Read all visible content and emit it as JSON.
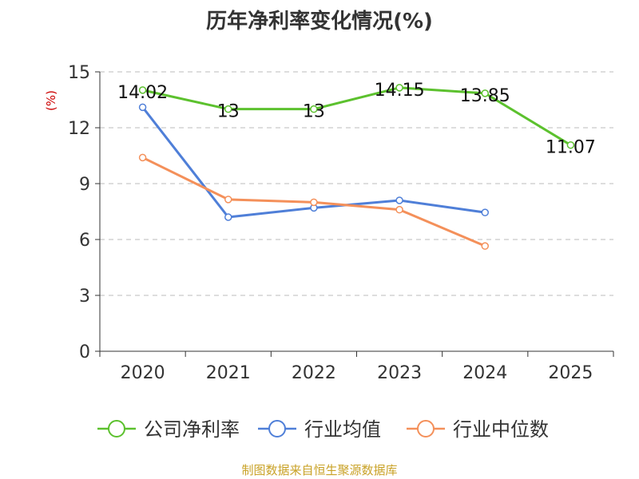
{
  "chart_data": {
    "type": "line",
    "title": "历年净利率变化情况(%)",
    "ylabel": "(%)",
    "xlabel": "",
    "categories": [
      "2020",
      "2021",
      "2022",
      "2023",
      "2024",
      "2025"
    ],
    "ylim": [
      0,
      15
    ],
    "yticks": [
      "0",
      "3",
      "6",
      "9",
      "12",
      "15"
    ],
    "grid": true,
    "legend_position": "bottom",
    "series": [
      {
        "name": "公司净利率",
        "color": "#5cc12e",
        "values": [
          14.02,
          13,
          13,
          14.15,
          13.85,
          11.07
        ],
        "labels": [
          "14.02",
          "13",
          "13",
          "14.15",
          "13.85",
          "11.07"
        ]
      },
      {
        "name": "行业均值",
        "color": "#4f7fd8",
        "values": [
          13.1,
          7.2,
          7.7,
          8.1,
          7.45,
          null
        ]
      },
      {
        "name": "行业中位数",
        "color": "#f4905a",
        "values": [
          10.4,
          8.15,
          8.0,
          7.6,
          5.65,
          null
        ]
      }
    ]
  },
  "source_note": "制图数据来自恒生聚源数据库"
}
